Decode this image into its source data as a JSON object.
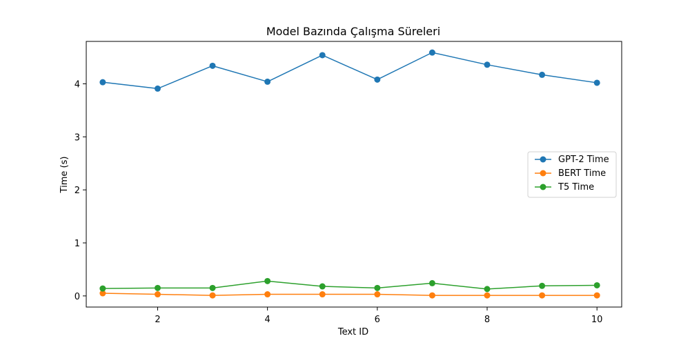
{
  "chart_data": {
    "type": "line",
    "title": "Model Bazında Çalışma Süreleri",
    "xlabel": "Text ID",
    "ylabel": "Time (s)",
    "x": [
      1,
      2,
      3,
      4,
      5,
      6,
      7,
      8,
      9,
      10
    ],
    "xlim": [
      0.7,
      10.45
    ],
    "ylim": [
      -0.21,
      4.8
    ],
    "xticks": [
      2,
      4,
      6,
      8,
      10
    ],
    "yticks": [
      0,
      1,
      2,
      3,
      4
    ],
    "grid": false,
    "legend_position": "center-right",
    "series": [
      {
        "name": "GPT-2 Time",
        "color": "#1f77b4",
        "values": [
          4.03,
          3.91,
          4.34,
          4.04,
          4.54,
          4.08,
          4.59,
          4.36,
          4.17,
          4.02
        ]
      },
      {
        "name": "BERT Time",
        "color": "#ff7f0e",
        "values": [
          0.05,
          0.03,
          0.01,
          0.03,
          0.03,
          0.03,
          0.01,
          0.01,
          0.01,
          0.01
        ]
      },
      {
        "name": "T5 Time",
        "color": "#2ca02c",
        "values": [
          0.14,
          0.15,
          0.15,
          0.28,
          0.18,
          0.15,
          0.24,
          0.13,
          0.19,
          0.2
        ]
      }
    ]
  }
}
